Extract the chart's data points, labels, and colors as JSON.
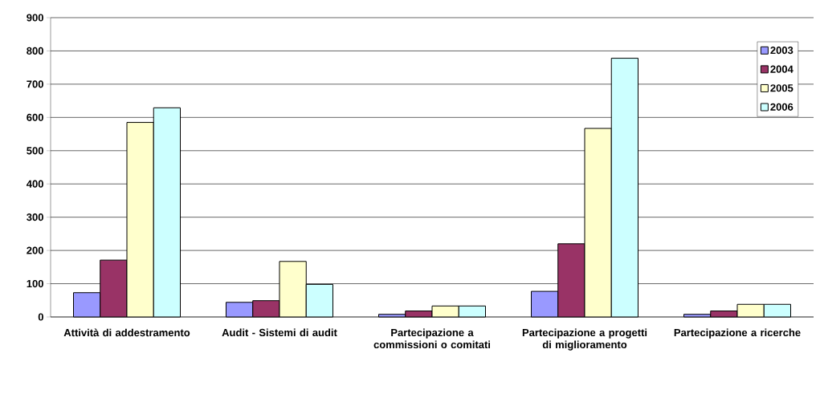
{
  "chart_data": {
    "type": "bar",
    "categories": [
      "Attività di addestramento",
      "Audit - Sistemi di audit",
      "Partecipazione a commissioni o comitati",
      "Partecipazione a progetti di miglioramento",
      "Partecipazione a ricerche"
    ],
    "series": [
      {
        "name": "2003",
        "color": "#9999ff",
        "values": [
          73,
          44,
          8,
          77,
          8
        ]
      },
      {
        "name": "2004",
        "color": "#993366",
        "values": [
          171,
          49,
          18,
          220,
          18
        ]
      },
      {
        "name": "2005",
        "color": "#ffffcc",
        "values": [
          585,
          167,
          33,
          567,
          38
        ]
      },
      {
        "name": "2006",
        "color": "#ccffff",
        "values": [
          629,
          98,
          33,
          778,
          38
        ]
      }
    ],
    "ylim": [
      0,
      900
    ],
    "yticks": [
      0,
      100,
      200,
      300,
      400,
      500,
      600,
      700,
      800,
      900
    ],
    "grid": "y",
    "legend": "top right"
  }
}
